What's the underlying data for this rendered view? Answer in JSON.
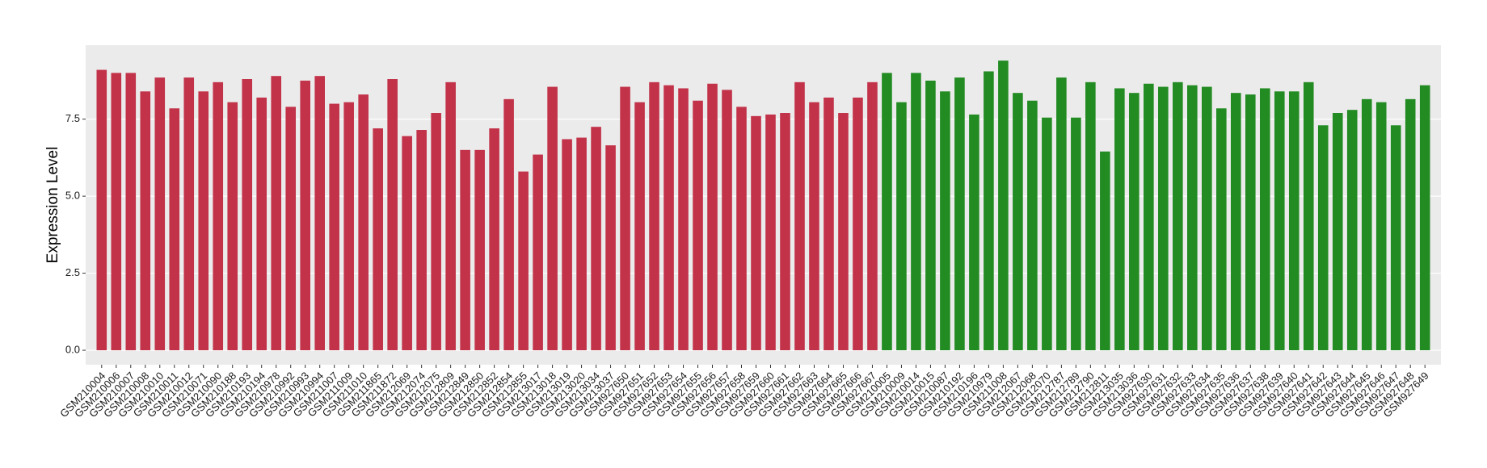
{
  "chart_data": {
    "type": "bar",
    "y_label": "Expression Level",
    "categories": [
      "GSM210004",
      "GSM210006",
      "GSM210007",
      "GSM210008",
      "GSM210010",
      "GSM210011",
      "GSM210012",
      "GSM210071",
      "GSM210090",
      "GSM210188",
      "GSM210193",
      "GSM210194",
      "GSM210978",
      "GSM210992",
      "GSM210993",
      "GSM210994",
      "GSM211007",
      "GSM211009",
      "GSM211010",
      "GSM211865",
      "GSM211872",
      "GSM212069",
      "GSM212074",
      "GSM212075",
      "GSM212809",
      "GSM212849",
      "GSM212850",
      "GSM212852",
      "GSM212854",
      "GSM212855",
      "GSM213017",
      "GSM213018",
      "GSM213019",
      "GSM213020",
      "GSM213034",
      "GSM213037",
      "GSM927650",
      "GSM927651",
      "GSM927652",
      "GSM927653",
      "GSM927654",
      "GSM927655",
      "GSM927656",
      "GSM927657",
      "GSM927658",
      "GSM927659",
      "GSM927660",
      "GSM927661",
      "GSM927662",
      "GSM927663",
      "GSM927664",
      "GSM927665",
      "GSM927666",
      "GSM927667",
      "GSM210005",
      "GSM210009",
      "GSM210014",
      "GSM210015",
      "GSM210087",
      "GSM210192",
      "GSM210196",
      "GSM210979",
      "GSM211008",
      "GSM212067",
      "GSM212068",
      "GSM212070",
      "GSM212787",
      "GSM212789",
      "GSM212790",
      "GSM212811",
      "GSM213035",
      "GSM213036",
      "GSM927630",
      "GSM927631",
      "GSM927632",
      "GSM927633",
      "GSM927634",
      "GSM927635",
      "GSM927636",
      "GSM927637",
      "GSM927638",
      "GSM927639",
      "GSM927640",
      "GSM927641",
      "GSM927642",
      "GSM927643",
      "GSM927644",
      "GSM927645",
      "GSM927646",
      "GSM927647",
      "GSM927648",
      "GSM927649"
    ],
    "values": [
      9.1,
      9.0,
      9.0,
      8.4,
      8.85,
      7.85,
      8.85,
      8.4,
      8.7,
      8.05,
      8.8,
      8.2,
      8.9,
      7.9,
      8.75,
      8.9,
      8.0,
      8.05,
      8.3,
      7.2,
      8.8,
      6.95,
      7.15,
      7.7,
      8.7,
      6.5,
      6.5,
      7.2,
      8.15,
      5.8,
      6.35,
      8.55,
      6.85,
      6.9,
      7.25,
      6.65,
      8.55,
      8.05,
      8.7,
      8.6,
      8.5,
      8.1,
      8.65,
      8.45,
      7.9,
      7.6,
      7.65,
      7.7,
      8.7,
      8.05,
      8.2,
      7.7,
      8.2,
      8.7,
      9.0,
      8.05,
      9.0,
      8.75,
      8.4,
      8.85,
      7.65,
      9.05,
      9.4,
      8.35,
      8.1,
      7.55,
      8.85,
      7.55,
      8.7,
      6.45,
      8.5,
      8.35,
      8.65,
      8.55,
      8.7,
      8.6,
      8.55,
      7.85,
      8.35,
      8.3,
      8.5,
      8.4,
      8.4,
      8.7,
      7.3,
      7.7,
      7.8,
      8.15,
      8.05,
      7.3,
      8.15,
      8.6
    ],
    "colors": [
      "#c2334a",
      "#c2334a",
      "#c2334a",
      "#c2334a",
      "#c2334a",
      "#c2334a",
      "#c2334a",
      "#c2334a",
      "#c2334a",
      "#c2334a",
      "#c2334a",
      "#c2334a",
      "#c2334a",
      "#c2334a",
      "#c2334a",
      "#c2334a",
      "#c2334a",
      "#c2334a",
      "#c2334a",
      "#c2334a",
      "#c2334a",
      "#c2334a",
      "#c2334a",
      "#c2334a",
      "#c2334a",
      "#c2334a",
      "#c2334a",
      "#c2334a",
      "#c2334a",
      "#c2334a",
      "#c2334a",
      "#c2334a",
      "#c2334a",
      "#c2334a",
      "#c2334a",
      "#c2334a",
      "#c2334a",
      "#c2334a",
      "#c2334a",
      "#c2334a",
      "#c2334a",
      "#c2334a",
      "#c2334a",
      "#c2334a",
      "#c2334a",
      "#c2334a",
      "#c2334a",
      "#c2334a",
      "#c2334a",
      "#c2334a",
      "#c2334a",
      "#c2334a",
      "#c2334a",
      "#c2334a",
      "#228b22",
      "#228b22",
      "#228b22",
      "#228b22",
      "#228b22",
      "#228b22",
      "#228b22",
      "#228b22",
      "#228b22",
      "#228b22",
      "#228b22",
      "#228b22",
      "#228b22",
      "#228b22",
      "#228b22",
      "#228b22",
      "#228b22",
      "#228b22",
      "#228b22",
      "#228b22",
      "#228b22",
      "#228b22",
      "#228b22",
      "#228b22",
      "#228b22",
      "#228b22",
      "#228b22",
      "#228b22",
      "#228b22",
      "#228b22",
      "#228b22",
      "#228b22",
      "#228b22",
      "#228b22",
      "#228b22",
      "#228b22",
      "#228b22",
      "#228b22"
    ],
    "ylim": [
      -0.47,
      9.9
    ],
    "yticks": [
      {
        "value": 0,
        "label": "0.0"
      },
      2.5,
      {
        "value": 5,
        "label": "5.0"
      },
      7.5
    ],
    "grid": true
  }
}
